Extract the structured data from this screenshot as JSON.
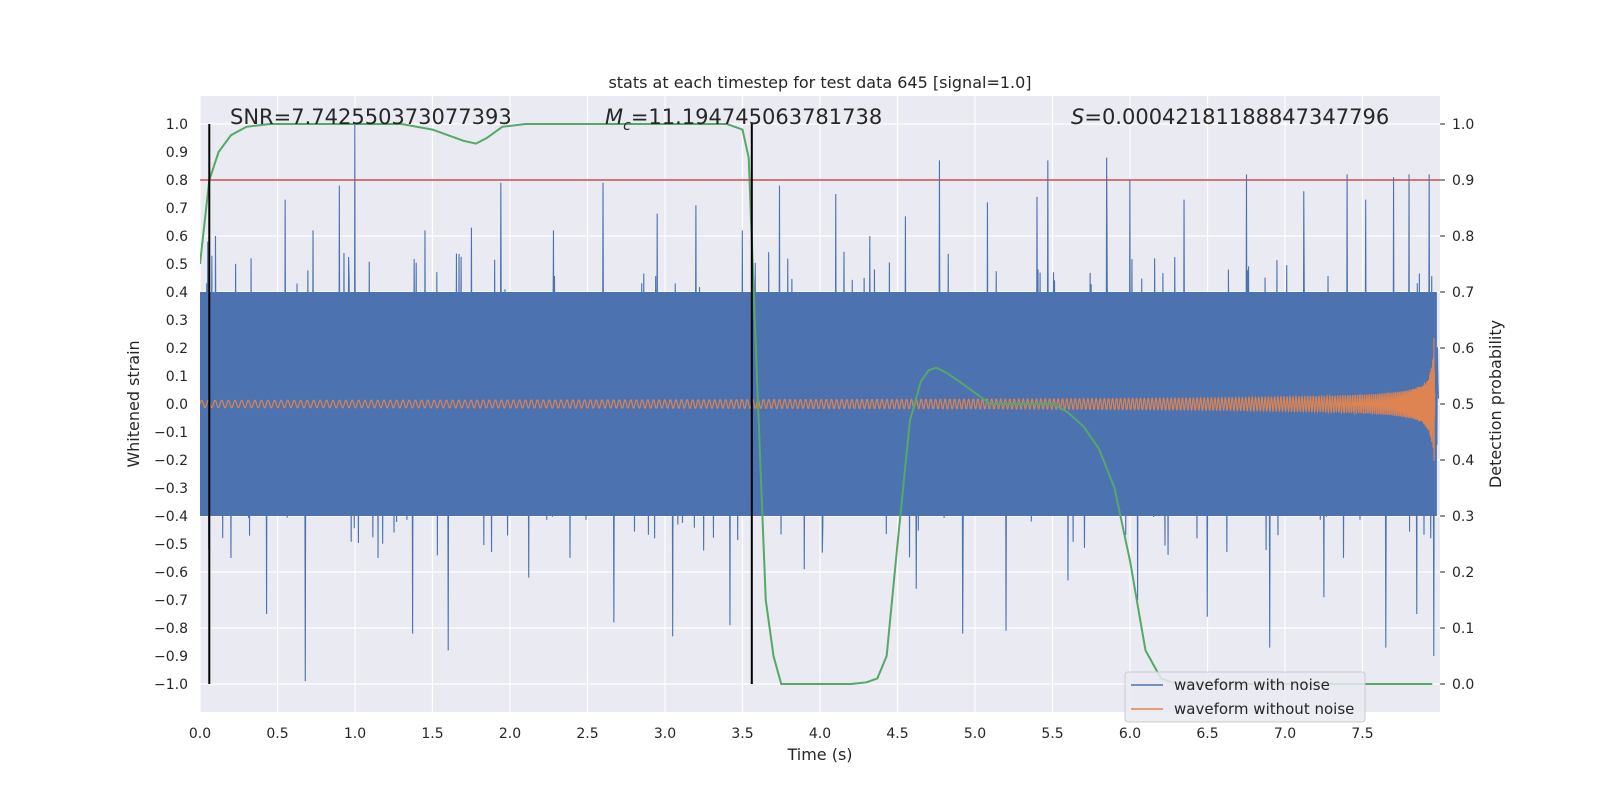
{
  "chart_data": {
    "type": "line",
    "title": "stats at each timestep for test data 645 [signal=1.0]",
    "xlabel": "Time (s)",
    "ylabel": "Whitened strain",
    "y2label": "Detection probability",
    "xlim": [
      0,
      8
    ],
    "ylim": [
      -1.1,
      1.1
    ],
    "y2lim": [
      -0.05,
      1.05
    ],
    "xticks": [
      0.0,
      0.5,
      1.0,
      1.5,
      2.0,
      2.5,
      3.0,
      3.5,
      4.0,
      4.5,
      5.0,
      5.5,
      6.0,
      6.5,
      7.0,
      7.5
    ],
    "xtick_labels": [
      "0.0",
      "0.5",
      "1.0",
      "1.5",
      "2.0",
      "2.5",
      "3.0",
      "3.5",
      "4.0",
      "4.5",
      "5.0",
      "5.5",
      "6.0",
      "6.5",
      "7.0",
      "7.5"
    ],
    "yticks": [
      -1.0,
      -0.9,
      -0.8,
      -0.7,
      -0.6,
      -0.5,
      -0.4,
      -0.3,
      -0.2,
      -0.1,
      0.0,
      0.1,
      0.2,
      0.3,
      0.4,
      0.5,
      0.6,
      0.7,
      0.8,
      0.9,
      1.0
    ],
    "ytick_labels": [
      "−1.0",
      "−0.9",
      "−0.8",
      "−0.7",
      "−0.6",
      "−0.5",
      "−0.4",
      "−0.3",
      "−0.2",
      "−0.1",
      "0.0",
      "0.1",
      "0.2",
      "0.3",
      "0.4",
      "0.5",
      "0.6",
      "0.7",
      "0.8",
      "0.9",
      "1.0"
    ],
    "y2ticks": [
      0.0,
      0.1,
      0.2,
      0.3,
      0.4,
      0.5,
      0.6,
      0.7,
      0.8,
      0.9,
      1.0
    ],
    "y2tick_labels": [
      "0.0",
      "0.1",
      "0.2",
      "0.3",
      "0.4",
      "0.5",
      "0.6",
      "0.7",
      "0.8",
      "0.9",
      "1.0"
    ],
    "annotations": {
      "snr": "SNR=7.742550373077393",
      "mc_symbol": "M",
      "mc_sub": "c",
      "mc_value": "=11.194745063781738",
      "s_symbol": "S",
      "s_value": "=0.00042181188847347796"
    },
    "threshold": {
      "value": 0.9,
      "axis": "right",
      "color": "#c44e52"
    },
    "vlines": [
      {
        "x": 0.06,
        "ymin": -1.0,
        "ymax": 1.0,
        "color": "#000000"
      },
      {
        "x": 3.56,
        "ymin": -1.0,
        "ymax": 1.0,
        "color": "#000000"
      }
    ],
    "series": [
      {
        "name": "waveform with noise",
        "color": "#4c72b0",
        "axis": "left",
        "kind": "noise",
        "envelope_core": [
          -0.4,
          0.4
        ],
        "spike_peaks": [
          [
            0.05,
            0.58
          ],
          [
            0.1,
            0.6
          ],
          [
            0.2,
            -0.55
          ],
          [
            0.33,
            0.52
          ],
          [
            0.43,
            -0.75
          ],
          [
            0.55,
            0.73
          ],
          [
            0.68,
            -0.99
          ],
          [
            0.73,
            0.62
          ],
          [
            0.9,
            0.78
          ],
          [
            1.0,
            1.0
          ],
          [
            1.15,
            -0.55
          ],
          [
            1.37,
            -0.82
          ],
          [
            1.45,
            0.62
          ],
          [
            1.6,
            -0.88
          ],
          [
            1.75,
            0.63
          ],
          [
            1.94,
            0.79
          ],
          [
            2.12,
            -0.62
          ],
          [
            2.28,
            0.62
          ],
          [
            2.6,
            0.79
          ],
          [
            2.67,
            -0.78
          ],
          [
            2.95,
            0.68
          ],
          [
            3.05,
            -0.83
          ],
          [
            3.2,
            0.71
          ],
          [
            3.42,
            -0.79
          ],
          [
            3.5,
            0.62
          ],
          [
            3.74,
            0.78
          ],
          [
            3.9,
            -0.59
          ],
          [
            4.1,
            0.75
          ],
          [
            4.32,
            0.6
          ],
          [
            4.55,
            0.67
          ],
          [
            4.62,
            -0.66
          ],
          [
            4.77,
            0.87
          ],
          [
            4.92,
            -0.82
          ],
          [
            5.08,
            0.72
          ],
          [
            5.2,
            -0.81
          ],
          [
            5.4,
            0.74
          ],
          [
            5.47,
            0.87
          ],
          [
            5.6,
            -0.63
          ],
          [
            5.85,
            0.88
          ],
          [
            6.0,
            0.8
          ],
          [
            6.05,
            -0.7
          ],
          [
            6.35,
            0.73
          ],
          [
            6.5,
            -0.76
          ],
          [
            6.75,
            0.82
          ],
          [
            6.9,
            -0.87
          ],
          [
            7.12,
            0.76
          ],
          [
            7.25,
            -0.69
          ],
          [
            7.4,
            0.82
          ],
          [
            7.52,
            0.73
          ],
          [
            7.65,
            -0.87
          ],
          [
            7.7,
            0.81
          ],
          [
            7.8,
            0.82
          ],
          [
            7.85,
            -0.75
          ],
          [
            7.93,
            0.82
          ],
          [
            7.96,
            -0.9
          ]
        ]
      },
      {
        "name": "waveform without noise",
        "color": "#dd8452",
        "axis": "left",
        "kind": "chirp",
        "t_merge": 7.97,
        "amp_start": 0.012,
        "amp_peak": 0.35
      },
      {
        "name": "detection probability",
        "color": "#55a868",
        "axis": "right",
        "kind": "line",
        "x": [
          0.0,
          0.06,
          0.12,
          0.2,
          0.3,
          0.45,
          0.7,
          1.0,
          1.3,
          1.5,
          1.6,
          1.7,
          1.78,
          1.85,
          1.95,
          2.1,
          2.5,
          3.0,
          3.4,
          3.5,
          3.54,
          3.6,
          3.65,
          3.7,
          3.75,
          3.9,
          4.2,
          4.3,
          4.37,
          4.43,
          4.5,
          4.58,
          4.65,
          4.7,
          4.75,
          4.82,
          4.9,
          5.1,
          5.3,
          5.5,
          5.6,
          5.7,
          5.8,
          5.9,
          6.0,
          6.1,
          6.2,
          6.3,
          6.5,
          7.0,
          7.5,
          7.95
        ],
        "y": [
          0.75,
          0.9,
          0.95,
          0.98,
          0.995,
          1.0,
          1.0,
          1.0,
          1.0,
          0.99,
          0.98,
          0.97,
          0.965,
          0.975,
          0.995,
          1.0,
          1.0,
          1.0,
          1.0,
          0.99,
          0.94,
          0.5,
          0.15,
          0.05,
          0.0,
          0.0,
          0.0,
          0.003,
          0.01,
          0.05,
          0.25,
          0.47,
          0.54,
          0.56,
          0.565,
          0.555,
          0.54,
          0.5,
          0.5,
          0.5,
          0.485,
          0.46,
          0.42,
          0.35,
          0.22,
          0.06,
          0.01,
          0.0,
          0.0,
          0.0,
          0.0,
          0.0
        ]
      }
    ],
    "legend": {
      "position": "lower-right",
      "entries": [
        "waveform with noise",
        "waveform without noise"
      ]
    }
  }
}
